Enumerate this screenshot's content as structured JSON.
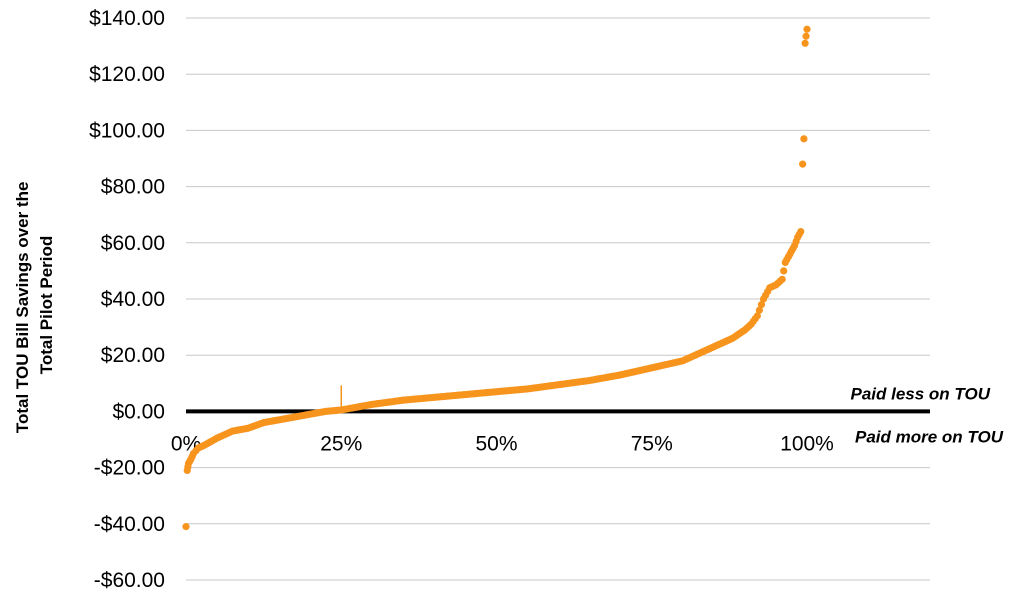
{
  "chart_data": {
    "type": "scatter",
    "title": "",
    "xlabel": "",
    "ylabel_lines": [
      "Total TOU Bill Savings over the",
      "Total Pilot Period"
    ],
    "ylim": [
      -60,
      140
    ],
    "xlim": [
      0,
      1
    ],
    "grid": true,
    "y_ticks": [
      140,
      120,
      100,
      80,
      60,
      40,
      20,
      0,
      -20,
      -40,
      -60
    ],
    "y_tick_labels": [
      "$140.00",
      "$120.00",
      "$100.00",
      "$80.00",
      "$60.00",
      "$40.00",
      "$20.00",
      "$0.00",
      "-$20.00",
      "-$40.00",
      "-$60.00"
    ],
    "x_ticks": [
      0,
      0.25,
      0.5,
      0.75,
      1.0
    ],
    "x_tick_labels": [
      "0%",
      "25%",
      "50%",
      "75%",
      "100%"
    ],
    "point_color": "#F7941D",
    "marker_x": 0.25,
    "annotations": {
      "above": "Paid less on TOU",
      "below": "Paid more on TOU"
    },
    "series": [
      {
        "x": [
          0.0,
          0.002,
          0.004,
          0.008,
          0.012,
          0.02,
          0.03,
          0.05,
          0.075,
          0.1,
          0.125,
          0.15,
          0.175,
          0.2,
          0.225,
          0.25,
          0.275,
          0.3,
          0.35,
          0.4,
          0.45,
          0.5,
          0.55,
          0.6,
          0.65,
          0.7,
          0.75,
          0.8,
          0.82,
          0.84,
          0.86,
          0.88,
          0.9,
          0.91,
          0.92,
          0.93,
          0.94,
          0.95,
          0.96,
          0.965,
          0.97,
          0.975,
          0.98,
          0.985,
          0.99,
          0.993,
          0.995,
          0.997,
          1.0
        ],
        "y": [
          -41,
          -21,
          -18.5,
          -17,
          -15,
          -13,
          -12,
          -9.5,
          -7,
          -6,
          -4,
          -3,
          -2,
          -1,
          0,
          0.5,
          1.5,
          2.5,
          4,
          5,
          6,
          7,
          8,
          9.5,
          11,
          13,
          15.5,
          18,
          20,
          22,
          24,
          26,
          29,
          31,
          34,
          40,
          44,
          45,
          47,
          53,
          55,
          57,
          59,
          62,
          64,
          88,
          97,
          131,
          136
        ]
      }
    ]
  }
}
